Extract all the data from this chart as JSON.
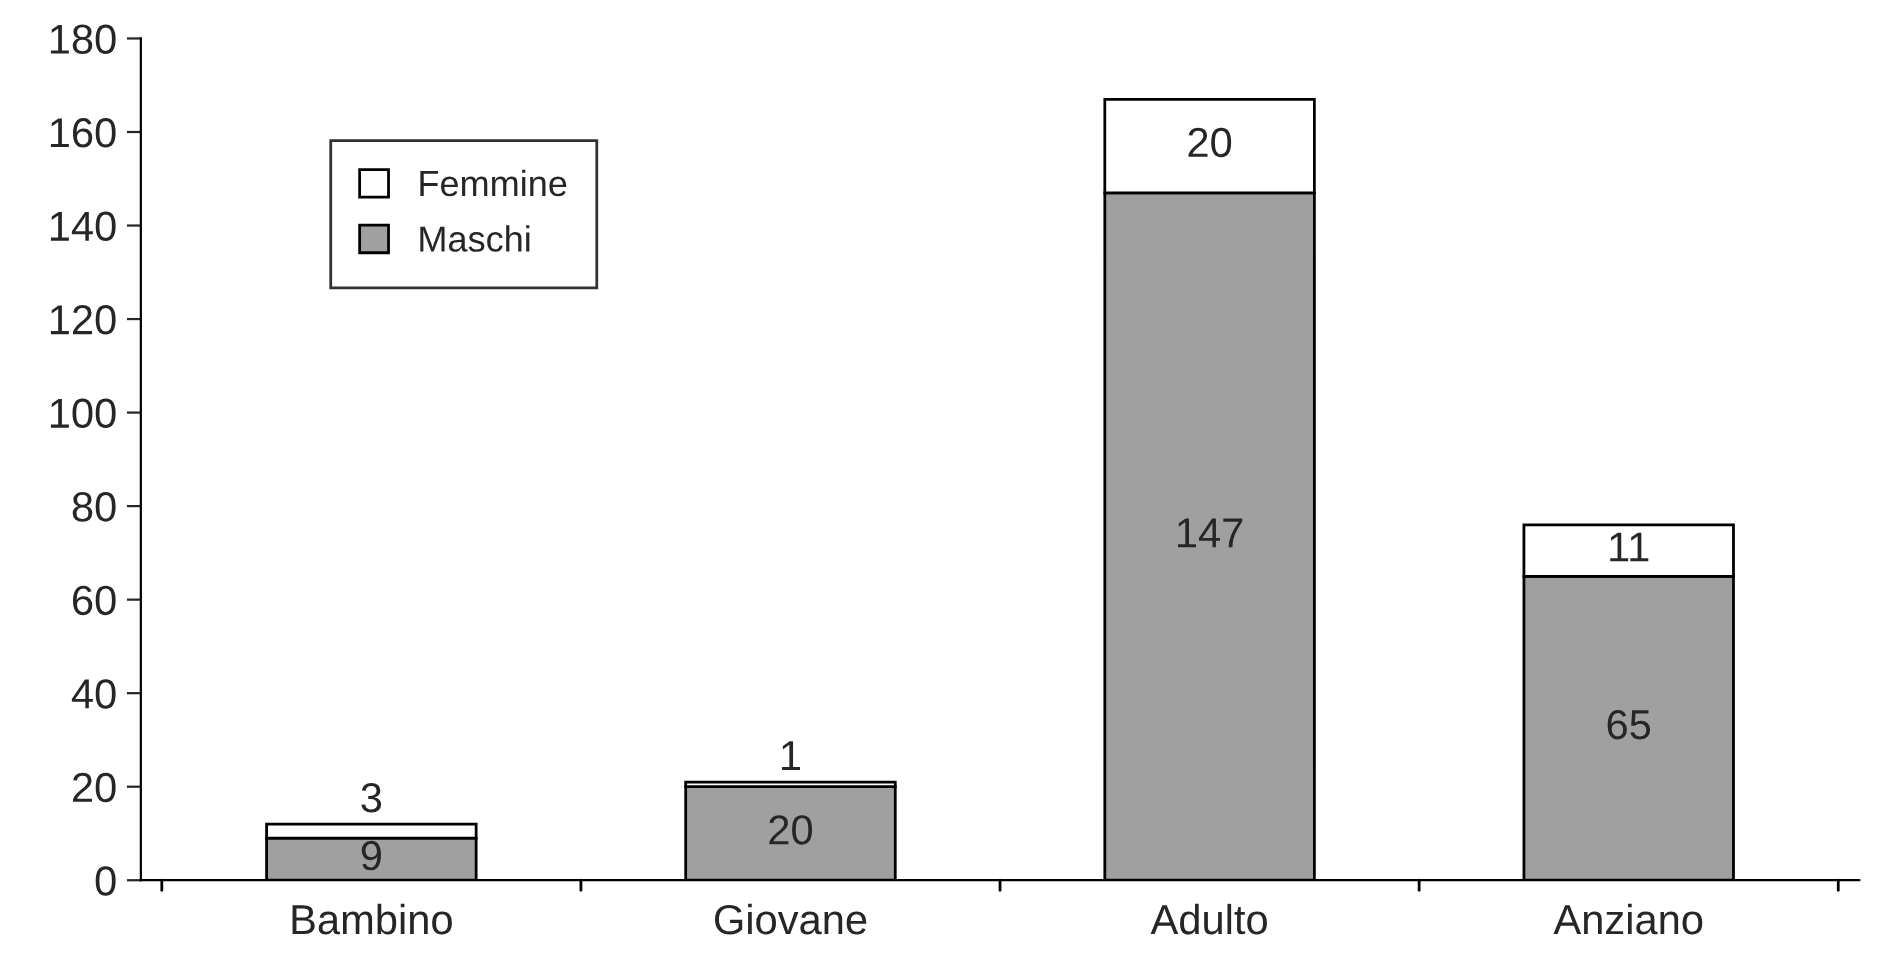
{
  "chart_data": {
    "type": "bar",
    "stacked": true,
    "categories": [
      "Bambino",
      "Giovane",
      "Adulto",
      "Anziano"
    ],
    "series": [
      {
        "name": "Maschi",
        "color": "#a0a0a0",
        "values": [
          9,
          20,
          147,
          65
        ]
      },
      {
        "name": "Femmine",
        "color": "#ffffff",
        "values": [
          3,
          1,
          20,
          11
        ]
      }
    ],
    "ylim": [
      0,
      180
    ],
    "yticks": [
      0,
      20,
      40,
      60,
      80,
      100,
      120,
      140,
      160,
      180
    ],
    "data_labels": true,
    "grid": false,
    "legend": "top left"
  }
}
